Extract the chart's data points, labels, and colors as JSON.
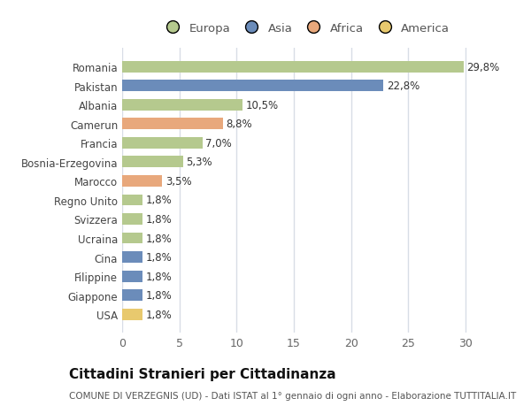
{
  "categories": [
    "Romania",
    "Pakistan",
    "Albania",
    "Camerun",
    "Francia",
    "Bosnia-Erzegovina",
    "Marocco",
    "Regno Unito",
    "Svizzera",
    "Ucraina",
    "Cina",
    "Filippine",
    "Giappone",
    "USA"
  ],
  "values": [
    29.8,
    22.8,
    10.5,
    8.8,
    7.0,
    5.3,
    3.5,
    1.8,
    1.8,
    1.8,
    1.8,
    1.8,
    1.8,
    1.8
  ],
  "labels": [
    "29,8%",
    "22,8%",
    "10,5%",
    "8,8%",
    "7,0%",
    "5,3%",
    "3,5%",
    "1,8%",
    "1,8%",
    "1,8%",
    "1,8%",
    "1,8%",
    "1,8%",
    "1,8%"
  ],
  "colors": [
    "#b5c98e",
    "#6b8cba",
    "#b5c98e",
    "#e8a87c",
    "#b5c98e",
    "#b5c98e",
    "#e8a87c",
    "#b5c98e",
    "#b5c98e",
    "#b5c98e",
    "#6b8cba",
    "#6b8cba",
    "#6b8cba",
    "#e8c96e"
  ],
  "legend_labels": [
    "Europa",
    "Asia",
    "Africa",
    "America"
  ],
  "legend_colors": [
    "#b5c98e",
    "#6b8cba",
    "#e8a87c",
    "#e8c96e"
  ],
  "title": "Cittadini Stranieri per Cittadinanza",
  "subtitle": "COMUNE DI VERZEGNIS (UD) - Dati ISTAT al 1° gennaio di ogni anno - Elaborazione TUTTITALIA.IT",
  "xlim": [
    0,
    32
  ],
  "xticks": [
    0,
    5,
    10,
    15,
    20,
    25,
    30
  ],
  "background_color": "#ffffff",
  "plot_bg_color": "#ffffff",
  "grid_color": "#d8dde6",
  "label_fontsize": 8.5,
  "ytick_fontsize": 8.5,
  "xtick_fontsize": 9,
  "title_fontsize": 11,
  "subtitle_fontsize": 7.5,
  "bar_height": 0.6
}
